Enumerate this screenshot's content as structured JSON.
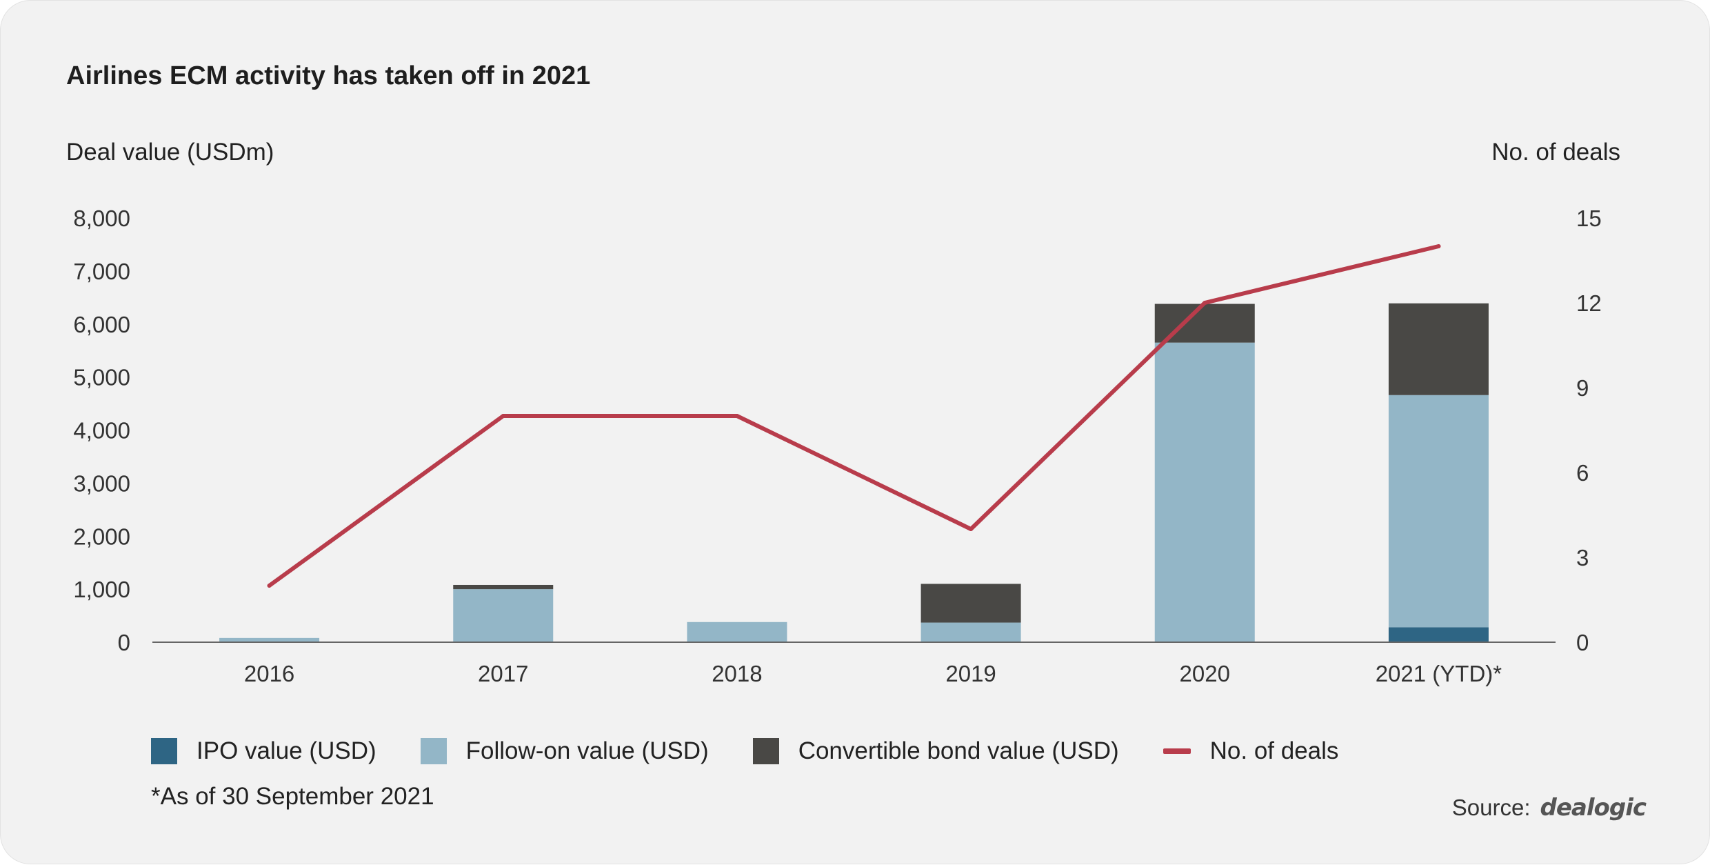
{
  "title": "Airlines ECM activity has taken off in 2021",
  "footnote": "*As of 30 September 2021",
  "source": {
    "label": "Source:",
    "logo": "dealogic"
  },
  "chart_data": {
    "type": "bar",
    "stacked": true,
    "title": "Airlines ECM activity has taken off in 2021",
    "ylabel": "Deal value (USDm)",
    "y2label": "No. of deals",
    "categories": [
      "2016",
      "2017",
      "2018",
      "2019",
      "2020",
      "2021 (YTD)*"
    ],
    "ylim": [
      0,
      8000
    ],
    "y2lim": [
      0,
      15
    ],
    "yticks": [
      "8,000",
      "7,000",
      "6,000",
      "5,000",
      "4,000",
      "3,000",
      "2,000",
      "1,000",
      "0"
    ],
    "y2ticks": [
      "15",
      "12",
      "9",
      "6",
      "3",
      "0"
    ],
    "series": [
      {
        "name": "IPO value (USD)",
        "type": "bar",
        "axis": "left",
        "color": "#2e6584",
        "values": [
          0,
          0,
          0,
          0,
          0,
          280
        ]
      },
      {
        "name": "Follow-on value (USD)",
        "type": "bar",
        "axis": "left",
        "color": "#93b6c7",
        "values": [
          80,
          1000,
          380,
          370,
          5650,
          4380
        ]
      },
      {
        "name": "Convertible bond value (USD)",
        "type": "bar",
        "axis": "left",
        "color": "#494845",
        "values": [
          0,
          80,
          0,
          730,
          730,
          1730
        ]
      },
      {
        "name": "No. of deals",
        "type": "line",
        "axis": "right",
        "color": "#b83c4b",
        "values": [
          2,
          8,
          8,
          4,
          12,
          14
        ]
      }
    ],
    "grid": false,
    "legend_position": "bottom"
  }
}
